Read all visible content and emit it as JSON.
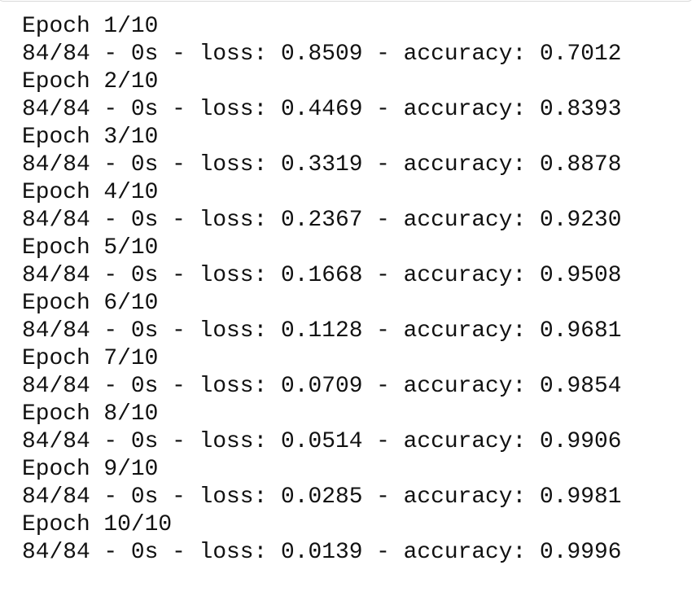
{
  "output": {
    "lines": [
      "Epoch 1/10",
      "84/84 - 0s - loss: 0.8509 - accuracy: 0.7012",
      "Epoch 2/10",
      "84/84 - 0s - loss: 0.4469 - accuracy: 0.8393",
      "Epoch 3/10",
      "84/84 - 0s - loss: 0.3319 - accuracy: 0.8878",
      "Epoch 4/10",
      "84/84 - 0s - loss: 0.2367 - accuracy: 0.9230",
      "Epoch 5/10",
      "84/84 - 0s - loss: 0.1668 - accuracy: 0.9508",
      "Epoch 6/10",
      "84/84 - 0s - loss: 0.1128 - accuracy: 0.9681",
      "Epoch 7/10",
      "84/84 - 0s - loss: 0.0709 - accuracy: 0.9854",
      "Epoch 8/10",
      "84/84 - 0s - loss: 0.0514 - accuracy: 0.9906",
      "Epoch 9/10",
      "84/84 - 0s - loss: 0.0285 - accuracy: 0.9981",
      "Epoch 10/10",
      "84/84 - 0s - loss: 0.0139 - accuracy: 0.9996"
    ]
  }
}
